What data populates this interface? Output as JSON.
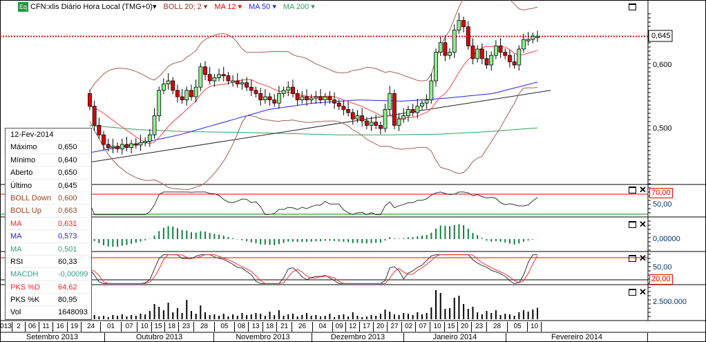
{
  "header": {
    "symbol_label": "CFN:xlis Diário Hora Local (TMG+0)▾",
    "eq_badge": "Eq",
    "indicators": [
      {
        "label": "BOLL 20; 2 ▾",
        "color": "#a03020"
      },
      {
        "label": "MA 12 ▾",
        "color": "#ff0000"
      },
      {
        "label": "MA 50 ▾",
        "color": "#2020ff"
      },
      {
        "label": "MA 200 ▾",
        "color": "#30a060"
      }
    ]
  },
  "info_box": {
    "date": "12-Fev-2014",
    "rows": [
      {
        "k": "Máximo",
        "v": "0,650",
        "c": "#000"
      },
      {
        "k": "Mínimo",
        "v": "0,640",
        "c": "#000"
      },
      {
        "k": "Aberto",
        "v": "0,650",
        "c": "#000"
      },
      {
        "k": "Último",
        "v": "0,645",
        "c": "#000"
      },
      {
        "k": "BOLL Down",
        "v": "0,600",
        "c": "#a04020"
      },
      {
        "k": "BOLL Up",
        "v": "0,663",
        "c": "#a04020"
      },
      {
        "k": "MA",
        "v": "0,631",
        "c": "#ff2020"
      },
      {
        "k": "MA",
        "v": "0,573",
        "c": "#2020ff"
      },
      {
        "k": "MA",
        "v": "0,501",
        "c": "#30a080"
      },
      {
        "k": "RSI",
        "v": "60,33",
        "c": "#000"
      },
      {
        "k": "MACDH",
        "v": "-0,00099",
        "c": "#30a090"
      },
      {
        "k": "PKS %D",
        "v": "64,62",
        "c": "#ff2020"
      },
      {
        "k": "PKS %K",
        "v": "80,95",
        "c": "#000"
      },
      {
        "k": "Vol",
        "v": "1648093",
        "c": "#000"
      }
    ]
  },
  "axes": {
    "price_labels": [
      "0,645",
      "0,600",
      "0,500"
    ],
    "rsi_labels": [
      "70,00",
      "50,00"
    ],
    "macd_labels": [
      "0,00000"
    ],
    "pks_labels": [
      "50,00",
      "20,00"
    ],
    "vol_labels": [
      "2.500.000"
    ]
  },
  "x_axis": {
    "days": [
      "013",
      "2",
      "06",
      "11",
      "16",
      "19",
      "24",
      "01",
      "07",
      "10",
      "15",
      "18",
      "23",
      "28",
      "05",
      "08",
      "13",
      "18",
      "21",
      "26",
      "04",
      "09",
      "12",
      "17",
      "20",
      "27",
      "02",
      "07",
      "10",
      "15",
      "20",
      "23",
      "28",
      "05",
      "10"
    ],
    "months": [
      "Setembro 2013",
      "Outubro 2013",
      "Novembro 2013",
      "Dezembro 2013",
      "Janeiro 2014",
      "Fevereiro 2014"
    ]
  },
  "chart_data": {
    "type": "candlestick",
    "title": "CFN:xlis Diário",
    "last_price": 0.645,
    "ylim": [
      0.42,
      0.69
    ],
    "closes": [
      0.535,
      0.505,
      0.49,
      0.475,
      0.47,
      0.472,
      0.468,
      0.475,
      0.47,
      0.476,
      0.474,
      0.478,
      0.48,
      0.49,
      0.52,
      0.56,
      0.57,
      0.575,
      0.56,
      0.55,
      0.545,
      0.56,
      0.55,
      0.565,
      0.597,
      0.585,
      0.575,
      0.58,
      0.585,
      0.583,
      0.575,
      0.575,
      0.57,
      0.572,
      0.565,
      0.56,
      0.555,
      0.545,
      0.55,
      0.545,
      0.54,
      0.555,
      0.56,
      0.565,
      0.555,
      0.545,
      0.55,
      0.545,
      0.548,
      0.55,
      0.545,
      0.55,
      0.545,
      0.54,
      0.535,
      0.53,
      0.525,
      0.515,
      0.52,
      0.512,
      0.505,
      0.51,
      0.505,
      0.5,
      0.53,
      0.555,
      0.505,
      0.515,
      0.52,
      0.53,
      0.525,
      0.535,
      0.54,
      0.545,
      0.575,
      0.62,
      0.635,
      0.615,
      0.62,
      0.655,
      0.67,
      0.66,
      0.63,
      0.61,
      0.625,
      0.61,
      0.6,
      0.615,
      0.63,
      0.62,
      0.615,
      0.605,
      0.6,
      0.625,
      0.64,
      0.64,
      0.645,
      0.645
    ],
    "ma50": [
      0.462,
      0.475,
      0.49,
      0.51,
      0.53,
      0.54,
      0.545,
      0.543,
      0.548,
      0.555,
      0.573
    ],
    "ma200": [
      0.505,
      0.498,
      0.495,
      0.494,
      0.492,
      0.49,
      0.49,
      0.491,
      0.495,
      0.501
    ],
    "trendline": [
      0.447,
      0.56
    ],
    "volume": [
      1.5,
      0.6,
      0.4,
      0.5,
      0.3,
      0.6,
      0.5,
      0.7,
      0.4,
      0.6,
      0.5,
      0.8,
      0.7,
      1.2,
      2.2,
      1.8,
      1.3,
      2.4,
      1.0,
      1.6,
      0.9,
      2.8,
      1.2,
      0.8,
      2.0,
      1.0,
      0.6,
      0.7,
      0.5,
      0.8,
      0.4,
      0.7,
      0.5,
      0.9,
      0.6,
      0.7,
      0.9,
      0.8,
      0.5,
      1.1,
      0.6,
      1.3,
      0.5,
      0.7,
      0.8,
      0.4,
      0.6,
      0.9,
      0.5,
      0.6,
      0.4,
      0.5,
      0.8,
      0.3,
      0.6,
      0.7,
      0.4,
      1.0,
      0.5,
      0.3,
      0.4,
      0.6,
      0.5,
      0.8,
      1.4,
      1.1,
      0.7,
      0.6,
      0.9,
      0.8,
      0.6,
      1.0,
      0.7,
      0.9,
      1.7,
      4.2,
      3.8,
      1.5,
      1.6,
      3.1,
      3.4,
      2.2,
      1.5,
      1.8,
      1.0,
      0.7,
      1.2,
      0.9,
      1.3,
      0.6,
      0.8,
      0.7,
      0.5,
      1.0,
      1.3,
      1.1,
      1.4,
      1.65
    ]
  }
}
